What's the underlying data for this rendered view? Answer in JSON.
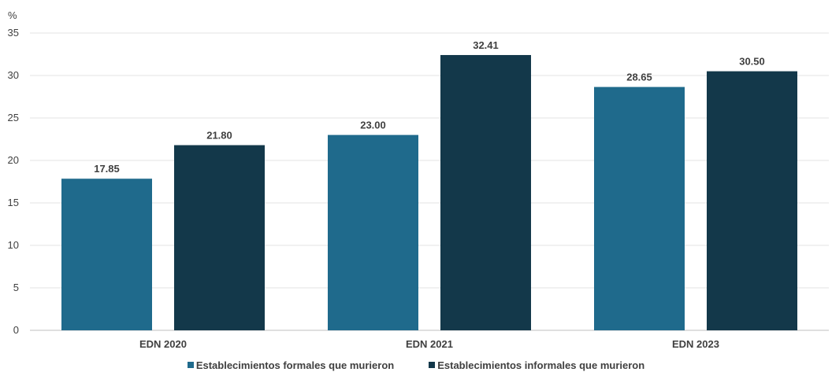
{
  "chart_data": {
    "type": "bar",
    "unit_label": "%",
    "categories": [
      "EDN 2020",
      "EDN 2021",
      "EDN 2023"
    ],
    "series": [
      {
        "name": "Establecimientos formales que murieron",
        "color": "#1f6a8c",
        "values": [
          17.85,
          23.0,
          28.65
        ],
        "labels": [
          "17.85",
          "23.00",
          "28.65"
        ]
      },
      {
        "name": "Establecimientos informales que murieron",
        "color": "#13384a",
        "values": [
          21.8,
          32.41,
          30.5
        ],
        "labels": [
          "21.80",
          "32.41",
          "30.50"
        ]
      }
    ],
    "ylim": [
      0,
      35
    ],
    "yticks": [
      "0",
      "5",
      "10",
      "15",
      "20",
      "25",
      "30",
      "35"
    ],
    "grid": true,
    "legend_position": "bottom"
  }
}
